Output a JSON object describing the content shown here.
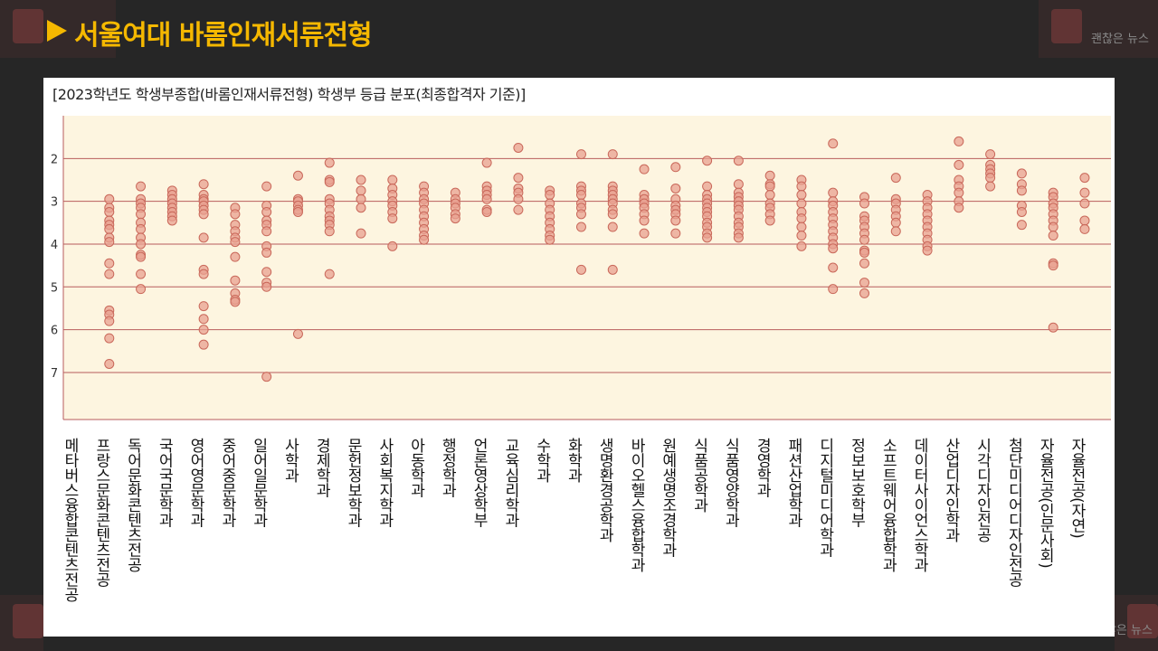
{
  "header": {
    "title": "서울여대 바롬인재서류전형",
    "watermark_left": "괜찮은 뉴스",
    "watermark_right": "괜찮은 뉴스"
  },
  "colors": {
    "background": "#262626",
    "title": "#f5b800",
    "plot_bg": "#fdf5e0",
    "gridline": "#b85c5c",
    "marker_fill": "#e8a090",
    "marker_stroke": "#c9685a"
  },
  "chart_data": {
    "type": "scatter",
    "title": "[2023학년도 학생부종합(바롬인재서류전형) 학생부 등급 분포(최종합격자 기준)]",
    "xlabel": "",
    "ylabel": "",
    "ylim": [
      1,
      8.1
    ],
    "y_inverted": true,
    "yticks": [
      2,
      3,
      4,
      5,
      6,
      7
    ],
    "grid": "horizontal",
    "categories": [
      "메타버스융합콘텐츠전공",
      "프랑스문화콘텐츠전공",
      "독어문화콘텐츠전공",
      "국어국문학과",
      "영어영문학과",
      "중어중문학과",
      "일어일문학과",
      "사학과",
      "경제학과",
      "문헌정보학과",
      "사회복지학과",
      "아동학과",
      "행정학과",
      "언론영상학부",
      "교육심리학과",
      "수학과",
      "화학과",
      "생명환경공학과",
      "바이오헬스융합학과",
      "원예생명조경학과",
      "식품공학과",
      "식품영양학과",
      "경영학과",
      "패션산업학과",
      "디지털미디어학과",
      "정보보호학부",
      "소프트웨어융합학과",
      "데이터사이언스학과",
      "산업디자인학과",
      "시각디자인전공",
      "첨단미디어디자인전공",
      "자율전공(인문사회)",
      "자율전공(자연)"
    ],
    "values": [
      [],
      [
        2.95,
        3.15,
        3.25,
        3.45,
        3.55,
        3.65,
        3.85,
        3.95,
        4.45,
        4.7,
        5.55,
        5.65,
        5.8,
        6.2,
        6.8
      ],
      [
        2.65,
        2.95,
        3.05,
        3.15,
        3.3,
        3.5,
        3.65,
        3.85,
        4.0,
        4.25,
        4.3,
        4.7,
        5.05
      ],
      [
        2.75,
        2.85,
        2.95,
        3.05,
        3.15,
        3.25,
        3.35,
        3.45
      ],
      [
        2.6,
        2.85,
        2.95,
        3.0,
        3.1,
        3.2,
        3.3,
        3.85,
        4.6,
        4.7,
        5.45,
        5.75,
        6.0,
        6.35
      ],
      [
        3.15,
        3.3,
        3.55,
        3.7,
        3.85,
        3.95,
        4.3,
        4.85,
        5.15,
        5.3,
        5.35
      ],
      [
        2.65,
        3.1,
        3.25,
        3.45,
        3.55,
        3.7,
        4.05,
        4.2,
        4.65,
        4.9,
        5.0,
        7.1
      ],
      [
        2.4,
        2.95,
        3.0,
        3.1,
        3.2,
        3.25,
        6.1
      ],
      [
        2.1,
        2.5,
        2.55,
        2.95,
        3.05,
        3.2,
        3.35,
        3.45,
        3.55,
        3.7,
        4.7
      ],
      [
        2.5,
        2.75,
        2.95,
        3.15,
        3.75
      ],
      [
        2.5,
        2.7,
        2.85,
        3.0,
        3.1,
        3.25,
        3.4,
        4.05
      ],
      [
        2.65,
        2.8,
        2.95,
        3.05,
        3.2,
        3.35,
        3.5,
        3.65,
        3.8,
        3.9
      ],
      [
        2.8,
        2.95,
        3.05,
        3.15,
        3.3,
        3.4
      ],
      [
        2.1,
        2.65,
        2.75,
        2.85,
        2.95,
        3.2,
        3.25
      ],
      [
        1.75,
        2.45,
        2.7,
        2.8,
        2.95,
        3.2
      ],
      [
        2.75,
        2.85,
        3.05,
        3.2,
        3.35,
        3.5,
        3.65,
        3.8,
        3.9
      ],
      [
        1.9,
        2.65,
        2.75,
        2.85,
        3.05,
        3.15,
        3.3,
        3.6,
        4.6
      ],
      [
        1.9,
        2.65,
        2.75,
        2.85,
        2.95,
        3.05,
        3.2,
        3.3,
        3.6,
        4.6
      ],
      [
        2.25,
        2.85,
        2.95,
        3.05,
        3.15,
        3.3,
        3.45,
        3.75
      ],
      [
        2.2,
        2.7,
        2.95,
        3.1,
        3.2,
        3.3,
        3.45,
        3.75
      ],
      [
        2.05,
        2.65,
        2.85,
        2.95,
        3.05,
        3.15,
        3.25,
        3.35,
        3.5,
        3.6,
        3.75,
        3.85
      ],
      [
        2.05,
        2.6,
        2.8,
        2.9,
        3.0,
        3.1,
        3.2,
        3.35,
        3.5,
        3.6,
        3.75,
        3.85
      ],
      [
        2.4,
        2.6,
        2.65,
        2.85,
        3.05,
        3.15,
        3.3,
        3.45
      ],
      [
        2.5,
        2.65,
        2.85,
        3.05,
        3.25,
        3.4,
        3.6,
        3.8,
        4.05
      ],
      [
        1.65,
        2.8,
        3.0,
        3.1,
        3.25,
        3.4,
        3.55,
        3.7,
        3.85,
        4.0,
        4.1,
        4.55,
        5.05
      ],
      [
        2.9,
        3.05,
        3.35,
        3.45,
        3.6,
        3.75,
        3.9,
        4.15,
        4.2,
        4.45,
        4.9,
        5.15
      ],
      [
        2.45,
        2.95,
        3.05,
        3.2,
        3.35,
        3.5,
        3.7
      ],
      [
        2.85,
        3.0,
        3.15,
        3.3,
        3.45,
        3.6,
        3.75,
        3.9,
        4.05,
        4.15
      ],
      [
        1.6,
        2.15,
        2.5,
        2.65,
        2.8,
        3.0,
        3.15
      ],
      [
        1.9,
        2.15,
        2.25,
        2.35,
        2.45,
        2.65
      ],
      [
        2.35,
        2.6,
        2.75,
        3.1,
        3.25,
        3.55
      ],
      [
        2.8,
        2.9,
        3.05,
        3.15,
        3.3,
        3.45,
        3.6,
        3.8,
        4.45,
        4.5,
        5.95
      ],
      [
        2.45,
        2.8,
        3.05,
        3.45,
        3.65
      ]
    ]
  }
}
